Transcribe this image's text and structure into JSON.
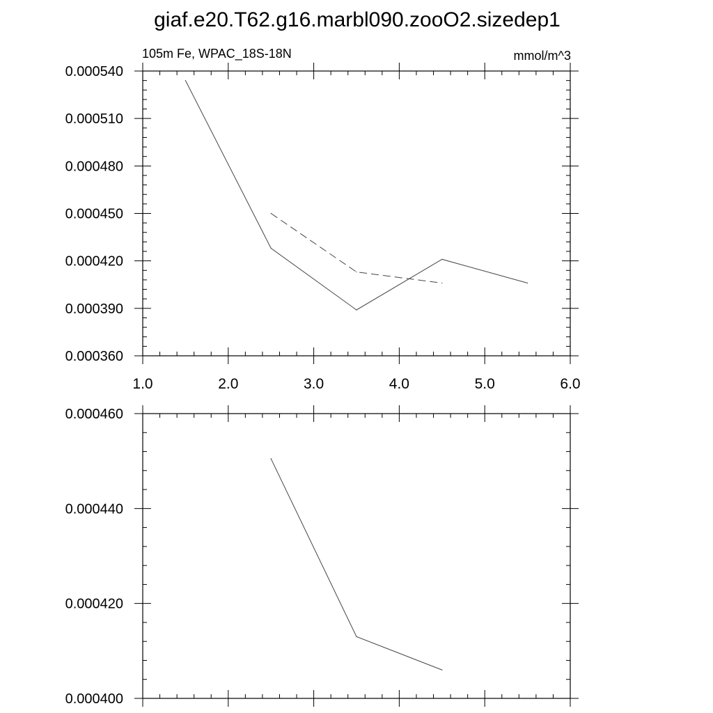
{
  "title": "giaf.e20.T62.g16.marbl090.zooO2.sizedep1",
  "chart_data": [
    {
      "type": "line",
      "left_label": "105m Fe, WPAC_18S-18N",
      "right_label": "mmol/m^3",
      "xlim": [
        1.0,
        6.0
      ],
      "ylim": [
        0.00036,
        0.00054
      ],
      "xticks": [
        "1.0",
        "2.0",
        "3.0",
        "4.0",
        "5.0",
        "6.0"
      ],
      "yticks": [
        "0.000360",
        "0.000390",
        "0.000420",
        "0.000450",
        "0.000480",
        "0.000510",
        "0.000540"
      ],
      "series": [
        {
          "style": "solid",
          "x": [
            1.5,
            2.5,
            3.5,
            4.5,
            5.5
          ],
          "y": [
            0.000534,
            0.000428,
            0.000389,
            0.000421,
            0.000406
          ]
        },
        {
          "style": "dashed",
          "x": [
            2.5,
            3.5,
            4.5
          ],
          "y": [
            0.00045,
            0.000413,
            0.000406
          ]
        }
      ]
    },
    {
      "type": "line",
      "xlim": [
        1.0,
        6.0
      ],
      "ylim": [
        0.0004,
        0.00046
      ],
      "xticks": [],
      "yticks": [
        "0.000400",
        "0.000420",
        "0.000440",
        "0.000460"
      ],
      "series": [
        {
          "style": "solid",
          "x": [
            2.5,
            3.5,
            4.5
          ],
          "y": [
            0.0004505,
            0.000413,
            0.000406
          ]
        }
      ]
    }
  ]
}
